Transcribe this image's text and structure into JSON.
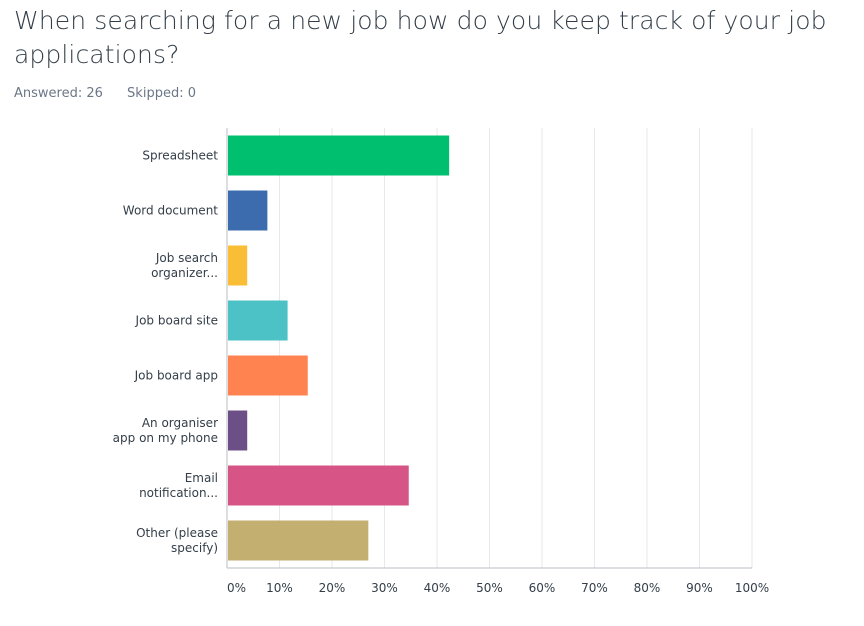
{
  "question": {
    "title": "When searching for a new job how do you keep track of your job applications?",
    "answered": "Answered: 26",
    "skipped": "Skipped: 0"
  },
  "chart_data": {
    "type": "bar",
    "orientation": "horizontal",
    "categories": [
      [
        "Spreadsheet"
      ],
      [
        "Word document"
      ],
      [
        "Job search",
        "organizer..."
      ],
      [
        "Job board site"
      ],
      [
        "Job board app"
      ],
      [
        "An organiser",
        "app on my phone"
      ],
      [
        "Email",
        "notification..."
      ],
      [
        "Other (please",
        "specify)"
      ]
    ],
    "values": [
      42.31,
      7.69,
      3.85,
      11.54,
      15.38,
      3.85,
      34.62,
      26.92
    ],
    "colors": [
      "#00bf6f",
      "#3c6cad",
      "#f9be35",
      "#4cc1c6",
      "#ff8350",
      "#6c4f86",
      "#d75486",
      "#c3af70"
    ],
    "xlim": [
      0,
      100
    ],
    "ticks": [
      "0%",
      "10%",
      "20%",
      "30%",
      "40%",
      "50%",
      "60%",
      "70%",
      "80%",
      "90%",
      "100%"
    ],
    "grid": true
  }
}
